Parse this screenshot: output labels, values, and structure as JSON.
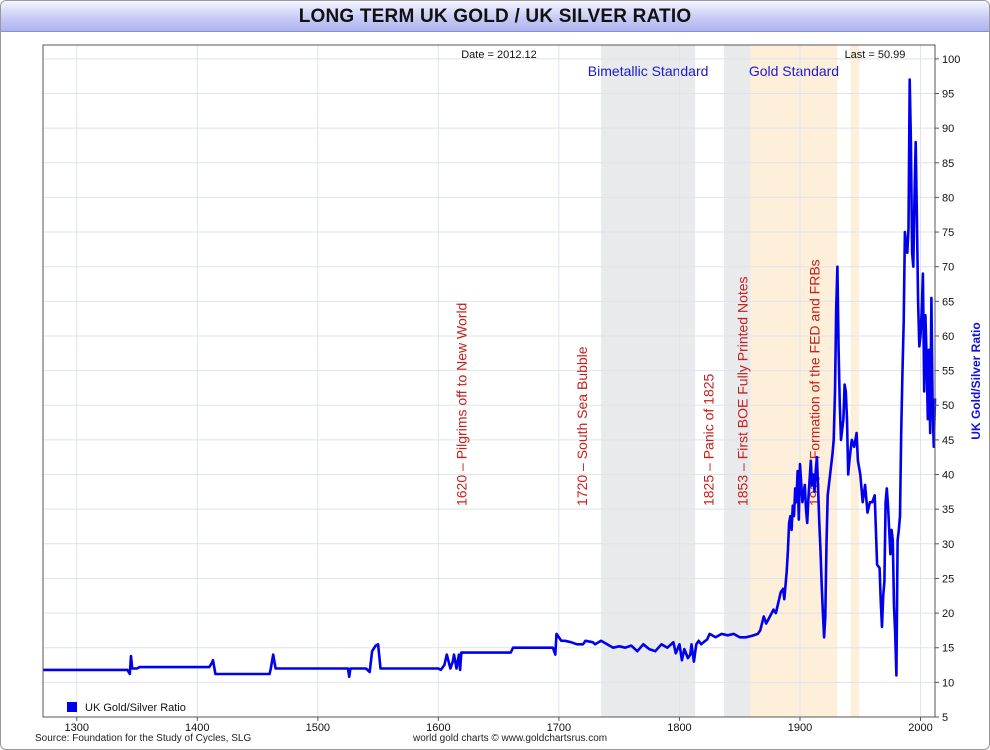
{
  "title": "LONG TERM UK GOLD / UK SILVER RATIO",
  "source": "Source: Foundation for the Study of Cycles, SLG",
  "credit": "world gold charts © www.goldchartsrus.com",
  "chart_data": {
    "type": "line",
    "title": "LONG TERM UK GOLD / UK SILVER RATIO",
    "date_label": "Date = 2012.12",
    "last_label": "Last = 50.99",
    "ylabel": "UK Gold/Silver Ratio",
    "xlim": [
      1272,
      2012
    ],
    "ylim": [
      5,
      102
    ],
    "x_ticks": [
      1300,
      1400,
      1500,
      1600,
      1700,
      1800,
      1900,
      2000
    ],
    "y_ticks": [
      5,
      10,
      15,
      20,
      25,
      30,
      35,
      40,
      45,
      50,
      55,
      60,
      65,
      70,
      75,
      80,
      85,
      90,
      95,
      100
    ],
    "grid": true,
    "legend_position": "bottom-left",
    "line_color": "#0000ee",
    "regions": [
      {
        "label": "Bimetallic Standard",
        "x0": 1735,
        "x1": 1813,
        "color": "#e9eaec"
      },
      {
        "label": "",
        "x0": 1837,
        "x1": 1859,
        "color": "#e9eaec"
      },
      {
        "label": "Gold Standard",
        "x0": 1859,
        "x1": 1931,
        "color": "#fdefd9"
      },
      {
        "label": "",
        "x0": 1942,
        "x1": 1949,
        "color": "#fdefd9"
      }
    ],
    "annotations": [
      {
        "x": 1620,
        "text": "1620 – Pilgrims off to New World"
      },
      {
        "x": 1720,
        "text": "1720 – South Sea Bubble"
      },
      {
        "x": 1825,
        "text": "1825 – Panic of 1825"
      },
      {
        "x": 1853,
        "text": "1853 – First BOE Fully Printed Notes"
      },
      {
        "x": 1913,
        "text": "1913 – Formation of the FED and FRBs"
      }
    ],
    "series": [
      {
        "name": "UK Gold/Silver Ratio",
        "points": [
          [
            1272,
            11.8
          ],
          [
            1342,
            11.8
          ],
          [
            1344,
            11.2
          ],
          [
            1345,
            13.8
          ],
          [
            1346,
            12.0
          ],
          [
            1350,
            12.0
          ],
          [
            1352,
            12.2
          ],
          [
            1410,
            12.2
          ],
          [
            1412,
            12.8
          ],
          [
            1413,
            13.2
          ],
          [
            1415,
            11.2
          ],
          [
            1460,
            11.2
          ],
          [
            1461,
            12.0
          ],
          [
            1463,
            14.0
          ],
          [
            1465,
            12.0
          ],
          [
            1525,
            12.0
          ],
          [
            1526,
            10.8
          ],
          [
            1527,
            12.0
          ],
          [
            1540,
            12.0
          ],
          [
            1543,
            11.5
          ],
          [
            1545,
            14.5
          ],
          [
            1548,
            15.3
          ],
          [
            1550,
            15.5
          ],
          [
            1552,
            12.0
          ],
          [
            1600,
            12.0
          ],
          [
            1602,
            11.8
          ],
          [
            1605,
            12.5
          ],
          [
            1607,
            14.0
          ],
          [
            1610,
            12.0
          ],
          [
            1612,
            13.0
          ],
          [
            1613,
            14.0
          ],
          [
            1615,
            12.0
          ],
          [
            1617,
            14.0
          ],
          [
            1618,
            11.8
          ],
          [
            1619,
            14.3
          ],
          [
            1660,
            14.3
          ],
          [
            1662,
            15.0
          ],
          [
            1695,
            15.0
          ],
          [
            1697,
            14.0
          ],
          [
            1698,
            17.0
          ],
          [
            1700,
            16.5
          ],
          [
            1702,
            16.0
          ],
          [
            1705,
            16.0
          ],
          [
            1710,
            15.8
          ],
          [
            1715,
            15.5
          ],
          [
            1720,
            15.5
          ],
          [
            1722,
            16.0
          ],
          [
            1728,
            15.8
          ],
          [
            1730,
            15.5
          ],
          [
            1735,
            16.0
          ],
          [
            1740,
            15.5
          ],
          [
            1745,
            15.0
          ],
          [
            1750,
            15.2
          ],
          [
            1755,
            15.0
          ],
          [
            1760,
            15.3
          ],
          [
            1765,
            14.5
          ],
          [
            1770,
            15.5
          ],
          [
            1775,
            14.8
          ],
          [
            1780,
            14.5
          ],
          [
            1785,
            15.5
          ],
          [
            1790,
            15.0
          ],
          [
            1795,
            15.8
          ],
          [
            1797,
            14.2
          ],
          [
            1800,
            15.5
          ],
          [
            1802,
            13.2
          ],
          [
            1804,
            14.8
          ],
          [
            1807,
            13.5
          ],
          [
            1809,
            14.0
          ],
          [
            1810,
            15.5
          ],
          [
            1812,
            13.0
          ],
          [
            1814,
            15.5
          ],
          [
            1816,
            16.0
          ],
          [
            1818,
            15.5
          ],
          [
            1820,
            15.8
          ],
          [
            1823,
            16.2
          ],
          [
            1825,
            17.0
          ],
          [
            1830,
            16.5
          ],
          [
            1835,
            17.0
          ],
          [
            1840,
            16.8
          ],
          [
            1845,
            17.0
          ],
          [
            1850,
            16.5
          ],
          [
            1855,
            16.5
          ],
          [
            1860,
            16.7
          ],
          [
            1865,
            17.0
          ],
          [
            1867,
            17.5
          ],
          [
            1870,
            19.5
          ],
          [
            1872,
            18.5
          ],
          [
            1875,
            19.5
          ],
          [
            1878,
            20.5
          ],
          [
            1880,
            20.0
          ],
          [
            1882,
            21.5
          ],
          [
            1884,
            23.0
          ],
          [
            1886,
            23.5
          ],
          [
            1887,
            22.0
          ],
          [
            1889,
            26.0
          ],
          [
            1890,
            29.0
          ],
          [
            1891,
            33.0
          ],
          [
            1892,
            34.0
          ],
          [
            1893,
            32.0
          ],
          [
            1894,
            35.5
          ],
          [
            1895,
            34.0
          ],
          [
            1896,
            38.0
          ],
          [
            1897,
            36.0
          ],
          [
            1898,
            40.5
          ],
          [
            1899,
            33.5
          ],
          [
            1900,
            41.5
          ],
          [
            1902,
            36.0
          ],
          [
            1904,
            38.5
          ],
          [
            1905,
            35.0
          ],
          [
            1906,
            33.0
          ],
          [
            1907,
            36.5
          ],
          [
            1909,
            42.0
          ],
          [
            1910,
            38.5
          ],
          [
            1911,
            40.0
          ],
          [
            1912,
            37.5
          ],
          [
            1913,
            40.5
          ],
          [
            1914,
            42.5
          ],
          [
            1915,
            38.0
          ],
          [
            1916,
            33.0
          ],
          [
            1917,
            29.0
          ],
          [
            1918,
            24.0
          ],
          [
            1919,
            20.0
          ],
          [
            1920,
            16.5
          ],
          [
            1921,
            19.5
          ],
          [
            1922,
            30.0
          ],
          [
            1923,
            37.0
          ],
          [
            1925,
            40.0
          ],
          [
            1927,
            43.0
          ],
          [
            1928,
            45.0
          ],
          [
            1929,
            52.0
          ],
          [
            1930,
            64.0
          ],
          [
            1931,
            70.0
          ],
          [
            1932,
            58.0
          ],
          [
            1933,
            50.0
          ],
          [
            1934,
            45.0
          ],
          [
            1936,
            48.0
          ],
          [
            1937,
            53.0
          ],
          [
            1938,
            52.0
          ],
          [
            1939,
            48.0
          ],
          [
            1940,
            40.0
          ],
          [
            1941,
            42.0
          ],
          [
            1943,
            45.0
          ],
          [
            1945,
            44.0
          ],
          [
            1947,
            46.0
          ],
          [
            1948,
            42.0
          ],
          [
            1950,
            40.0
          ],
          [
            1952,
            36.0
          ],
          [
            1954,
            38.5
          ],
          [
            1956,
            34.5
          ],
          [
            1958,
            36.0
          ],
          [
            1960,
            36.0
          ],
          [
            1962,
            37.0
          ],
          [
            1964,
            27.0
          ],
          [
            1966,
            26.5
          ],
          [
            1967,
            21.5
          ],
          [
            1968,
            18.0
          ],
          [
            1969,
            22.5
          ],
          [
            1970,
            24.5
          ],
          [
            1971,
            36.0
          ],
          [
            1972,
            38.0
          ],
          [
            1973,
            35.5
          ],
          [
            1974,
            32.0
          ],
          [
            1975,
            28.5
          ],
          [
            1976,
            32.0
          ],
          [
            1977,
            30.5
          ],
          [
            1978,
            21.0
          ],
          [
            1979,
            17.0
          ],
          [
            1980,
            11.0
          ],
          [
            1981,
            30.5
          ],
          [
            1982,
            32.0
          ],
          [
            1983,
            34.0
          ],
          [
            1984,
            46.0
          ],
          [
            1985,
            55.0
          ],
          [
            1986,
            62.0
          ],
          [
            1987,
            75.0
          ],
          [
            1988,
            73.0
          ],
          [
            1989,
            72.0
          ],
          [
            1990,
            75.5
          ],
          [
            1991,
            97.0
          ],
          [
            1992,
            88.0
          ],
          [
            1993,
            72.0
          ],
          [
            1994,
            70.0
          ],
          [
            1995,
            80.0
          ],
          [
            1996,
            88.0
          ],
          [
            1997,
            77.0
          ],
          [
            1998,
            65.0
          ],
          [
            1999,
            58.5
          ],
          [
            2000,
            60.0
          ],
          [
            2001,
            63.5
          ],
          [
            2002,
            69.0
          ],
          [
            2003,
            52.0
          ],
          [
            2004,
            63.0
          ],
          [
            2005,
            57.0
          ],
          [
            2006,
            48.0
          ],
          [
            2007,
            58.0
          ],
          [
            2008,
            46.0
          ],
          [
            2009,
            65.5
          ],
          [
            2010,
            50.0
          ],
          [
            2011,
            44.0
          ],
          [
            2012,
            51.0
          ]
        ]
      }
    ]
  }
}
